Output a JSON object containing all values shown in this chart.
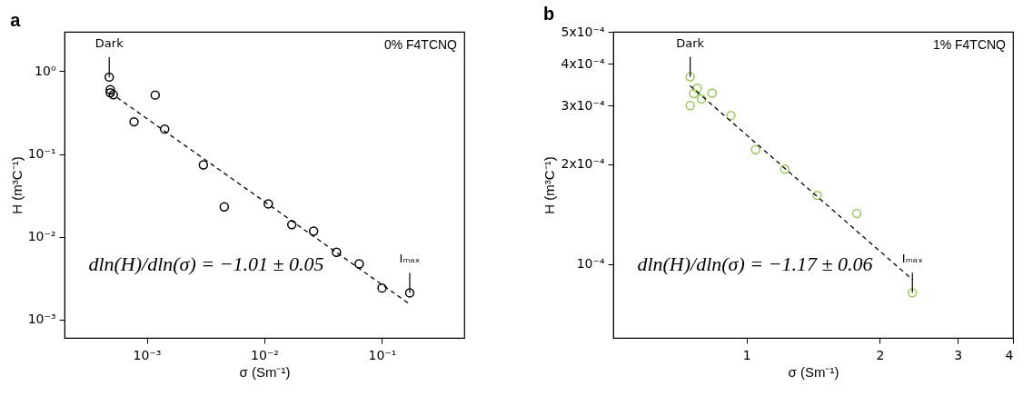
{
  "chart_data": [
    {
      "type": "scatter",
      "title": "a",
      "xlabel": "σ (Sm⁻¹)",
      "ylabel": "H (m³C⁻¹)",
      "log": "xy",
      "xlim": [
        0.0002,
        0.5
      ],
      "ylim": [
        0.0006,
        3
      ],
      "xticks": [
        {
          "value": 0.001,
          "label": "10⁻³"
        },
        {
          "value": 0.01,
          "label": "10⁻²"
        },
        {
          "value": 0.1,
          "label": "10⁻¹"
        }
      ],
      "yticks": [
        {
          "value": 0.001,
          "label": "10⁻³"
        },
        {
          "value": 0.01,
          "label": "10⁻²"
        },
        {
          "value": 0.1,
          "label": "10⁻¹"
        },
        {
          "value": 1,
          "label": "10⁰"
        }
      ],
      "series": [
        {
          "marker": "circle",
          "color": "#000000",
          "x": [
            0.00048,
            0.00049,
            0.00049,
            0.00052,
            0.00078,
            0.00118,
            0.00142,
            0.00303,
            0.00456,
            0.0108,
            0.0171,
            0.0262,
            0.041,
            0.064,
            0.1,
            0.172
          ],
          "values": [
            0.85,
            0.6,
            0.55,
            0.52,
            0.245,
            0.516,
            0.2,
            0.074,
            0.023,
            0.025,
            0.014,
            0.0117,
            0.0065,
            0.0047,
            0.0024,
            0.0021
          ]
        },
        {
          "type": "line",
          "line_style": "dashed",
          "color": "#000000",
          "x": [
            0.00049,
            0.17
          ],
          "values": [
            0.55,
            0.00155
          ]
        }
      ],
      "annotations": [
        {
          "text": "Dark",
          "x": 0.00048,
          "y": 0.85
        },
        {
          "text": "Iₘₐₓ",
          "x": 0.172,
          "y": 0.0021
        },
        "0% F4TCNQ",
        "dln(H)/dln(σ) = −1.01 ± 0.05"
      ]
    },
    {
      "type": "scatter",
      "title": "b",
      "xlabel": "σ (Sm⁻¹)",
      "ylabel": "H (m³C⁻¹)",
      "log": "xy",
      "xlim": [
        0.5,
        4
      ],
      "ylim": [
        6e-05,
        0.0005
      ],
      "xticks": [
        1,
        2,
        3,
        4
      ],
      "yticks": [
        {
          "value": 0.0001,
          "label": "10⁻⁴"
        },
        {
          "value": 0.0002,
          "label": "2x10⁻⁴"
        },
        {
          "value": 0.0003,
          "label": "3x10⁻⁴"
        },
        {
          "value": 0.0004,
          "label": "4x10⁻⁴"
        },
        {
          "value": 0.0005,
          "label": "5x10⁻⁴"
        }
      ],
      "series": [
        {
          "marker": "circle",
          "color": "#92d050",
          "x": [
            0.746,
            0.746,
            0.76,
            0.774,
            0.791,
            0.836,
            0.922,
            1.048,
            1.22,
            1.445,
            1.775,
            2.37
          ],
          "values": [
            0.000366,
            0.0003,
            0.000326,
            0.000338,
            0.000314,
            0.000327,
            0.00028,
            0.000221,
            0.000193,
            0.000161,
            0.000142,
            8.2e-05
          ]
        },
        {
          "type": "line",
          "line_style": "dashed",
          "color": "#000000",
          "x": [
            0.746,
            2.376
          ],
          "values": [
            0.000344,
            8.96e-05
          ]
        }
      ],
      "annotations": [
        {
          "text": "Dark",
          "x": 0.746,
          "y": 0.000366
        },
        {
          "text": "Iₘₐₓ",
          "x": 2.37,
          "y": 8.2e-05
        },
        "1% F4TCNQ",
        "dln(H)/dln(σ) = −1.17 ± 0.06"
      ]
    }
  ]
}
